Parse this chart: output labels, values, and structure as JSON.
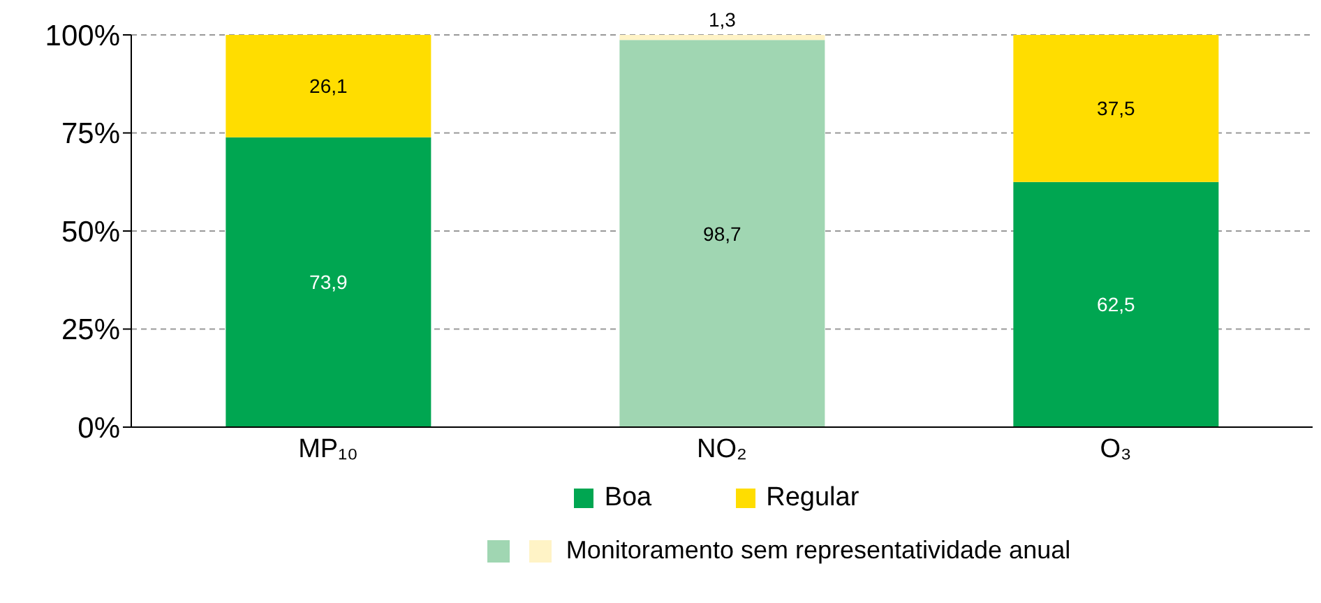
{
  "chart_data": {
    "type": "bar",
    "stacked": true,
    "categories": [
      "MP₁₀",
      "NO₂",
      "O₃"
    ],
    "series": [
      {
        "name": "Boa",
        "color": "#00a651",
        "colors": [
          "#00a651",
          "#a0d6b2",
          "#00a651"
        ],
        "values": [
          73.9,
          98.7,
          62.5
        ],
        "value_labels": [
          "73,9",
          "98,7",
          "62,5"
        ]
      },
      {
        "name": "Regular",
        "color": "#ffdd00",
        "colors": [
          "#ffdd00",
          "#fff3c6",
          "#ffdd00"
        ],
        "values": [
          26.1,
          1.3,
          37.5
        ],
        "value_labels": [
          "26,1",
          "1,3",
          "37,5"
        ]
      }
    ],
    "ylim": [
      0,
      100
    ],
    "yticks": [
      {
        "value": 0,
        "label": "0%"
      },
      {
        "value": 25,
        "label": "25%"
      },
      {
        "value": 50,
        "label": "50%"
      },
      {
        "value": 75,
        "label": "75%"
      },
      {
        "value": 100,
        "label": "100%"
      }
    ],
    "grid": "y",
    "legend": "bottom",
    "annotations": [
      "Monitoramento sem representatividade anual"
    ]
  }
}
